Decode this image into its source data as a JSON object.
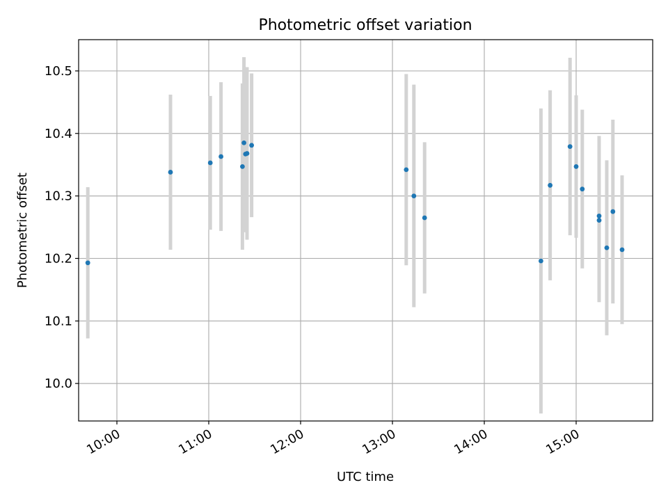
{
  "chart_data": {
    "type": "scatter",
    "title": "Photometric offset variation",
    "xlabel": "UTC time",
    "ylabel": "Photometric offset",
    "xlim": [
      "09:35",
      "15:50"
    ],
    "ylim": [
      9.94,
      10.55
    ],
    "x_ticks": [
      "10:00",
      "11:00",
      "12:00",
      "13:00",
      "14:00",
      "15:00"
    ],
    "y_ticks": [
      "10.0",
      "10.1",
      "10.2",
      "10.3",
      "10.4",
      "10.5"
    ],
    "grid": true,
    "point_color": "#1f77b4",
    "errorbar_color": "#d3d3d3",
    "points": [
      {
        "x": "09:41",
        "y": 10.193,
        "err": 0.121
      },
      {
        "x": "10:35",
        "y": 10.338,
        "err": 0.124
      },
      {
        "x": "11:01",
        "y": 10.353,
        "err": 0.107
      },
      {
        "x": "11:08",
        "y": 10.363,
        "err": 0.119
      },
      {
        "x": "11:22",
        "y": 10.347,
        "err": 0.133
      },
      {
        "x": "11:23",
        "y": 10.385,
        "err": 0.137
      },
      {
        "x": "11:24",
        "y": 10.367,
        "err": 0.125
      },
      {
        "x": "11:25",
        "y": 10.368,
        "err": 0.138
      },
      {
        "x": "11:28",
        "y": 10.381,
        "err": 0.115
      },
      {
        "x": "13:09",
        "y": 10.342,
        "err": 0.153
      },
      {
        "x": "13:14",
        "y": 10.3,
        "err": 0.178
      },
      {
        "x": "13:21",
        "y": 10.265,
        "err": 0.121
      },
      {
        "x": "14:37",
        "y": 10.196,
        "err": 0.244
      },
      {
        "x": "14:43",
        "y": 10.317,
        "err": 0.152
      },
      {
        "x": "14:56",
        "y": 10.379,
        "err": 0.142
      },
      {
        "x": "15:00",
        "y": 10.347,
        "err": 0.114
      },
      {
        "x": "15:04",
        "y": 10.311,
        "err": 0.127
      },
      {
        "x": "15:15",
        "y": 10.261,
        "err": 0.131
      },
      {
        "x": "15:15",
        "y": 10.268,
        "err": 0.128
      },
      {
        "x": "15:20",
        "y": 10.217,
        "err": 0.14
      },
      {
        "x": "15:24",
        "y": 10.275,
        "err": 0.147
      },
      {
        "x": "15:30",
        "y": 10.214,
        "err": 0.119
      }
    ]
  }
}
